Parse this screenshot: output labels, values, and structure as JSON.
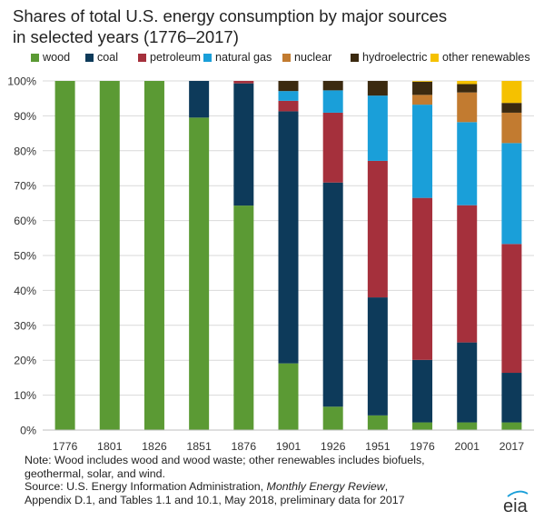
{
  "chart_data": {
    "type": "bar",
    "stacked": true,
    "title": "Shares of total U.S. energy consumption by major sources in selected years (1776–2017)",
    "title_lines": [
      "Shares of total U.S. energy consumption by major sources",
      "in selected years (1776–2017)"
    ],
    "categories": [
      "1776",
      "1801",
      "1826",
      "1851",
      "1876",
      "1901",
      "1926",
      "1951",
      "1976",
      "2001",
      "2017"
    ],
    "series": [
      {
        "name": "wood",
        "color": "#5b9a34",
        "values": [
          100,
          100,
          100,
          89.5,
          64.3,
          19.1,
          6.7,
          4.2,
          2.2,
          2.2,
          2.2
        ]
      },
      {
        "name": "coal",
        "color": "#0d3a5a",
        "values": [
          0,
          0,
          0,
          10.5,
          35.0,
          72.2,
          64.2,
          33.8,
          17.9,
          22.9,
          14.2
        ]
      },
      {
        "name": "petroleum",
        "color": "#a5303c",
        "values": [
          0,
          0,
          0,
          0,
          0.7,
          3.0,
          20.0,
          39.1,
          46.4,
          39.3,
          36.9
        ]
      },
      {
        "name": "natural gas",
        "color": "#1a9fd9",
        "values": [
          0,
          0,
          0,
          0,
          0,
          2.8,
          6.4,
          18.7,
          26.7,
          23.8,
          28.9
        ]
      },
      {
        "name": "nuclear",
        "color": "#c27b30",
        "values": [
          0,
          0,
          0,
          0,
          0,
          0,
          0,
          0,
          2.8,
          8.5,
          8.7
        ]
      },
      {
        "name": "hydroelectric",
        "color": "#3b2a10",
        "values": [
          0,
          0,
          0,
          0,
          0,
          2.9,
          2.7,
          4.2,
          3.8,
          2.4,
          2.8
        ]
      },
      {
        "name": "other renewables",
        "color": "#f5c100",
        "values": [
          0,
          0,
          0,
          0,
          0,
          0,
          0,
          0,
          0.2,
          0.9,
          6.3
        ]
      }
    ],
    "y_ticks": [
      "0%",
      "10%",
      "20%",
      "30%",
      "40%",
      "50%",
      "60%",
      "70%",
      "80%",
      "90%",
      "100%"
    ],
    "ylim": [
      0,
      100
    ],
    "xlabel": "",
    "ylabel": "",
    "grid": true,
    "legend_position": "top"
  },
  "notes": {
    "line1": "Note: Wood includes wood and wood waste; other renewables includes biofuels,",
    "line2": "geothermal, solar, and wind.",
    "source_prefix": "Source: U.S. Energy Information Administration, ",
    "source_italic": "Monthly Energy Review",
    "source_suffix": ",",
    "line4": "Appendix D.1, and Tables 1.1 and 10.1, May 2018, preliminary data for 2017"
  },
  "logo": {
    "text": "eia",
    "color": "#333333",
    "accent": "#1a9fd9"
  }
}
